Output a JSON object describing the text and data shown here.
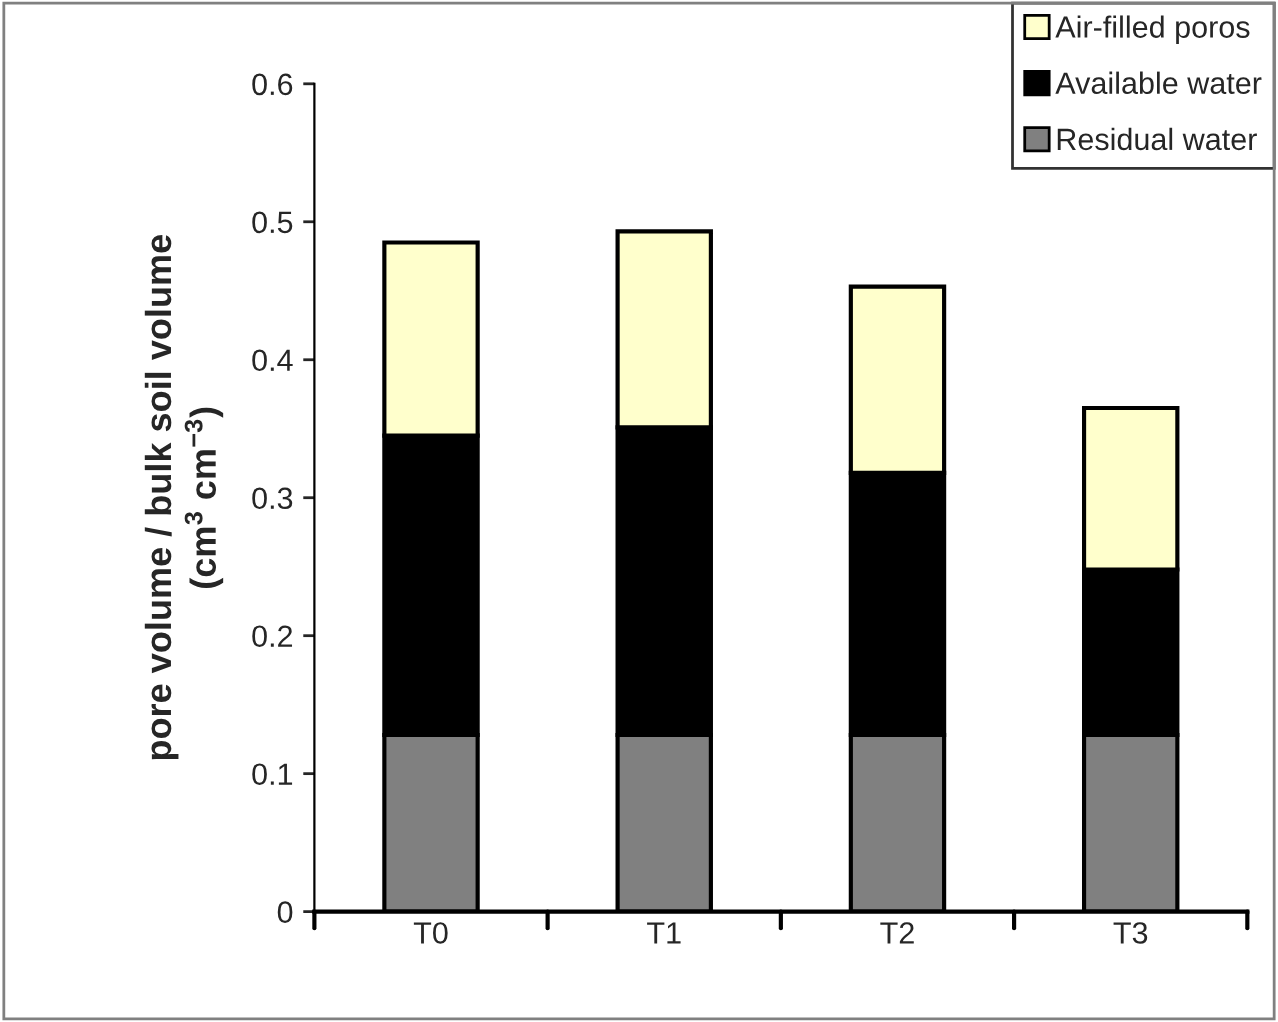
{
  "chart_data": {
    "type": "bar",
    "stacked": true,
    "ylabel": "pore volume / bulk soil volume\n(cm$^{3}$ cm$^{−3}$)",
    "categories": [
      "T0",
      "T1",
      "T2",
      "T3"
    ],
    "series": [
      {
        "name": "Residual water",
        "color": "#808080",
        "values": [
          0.128,
          0.128,
          0.128,
          0.128
        ]
      },
      {
        "name": "Available water",
        "color": "#000000",
        "values": [
          0.217,
          0.223,
          0.19,
          0.12
        ]
      },
      {
        "name": "Air-filled poros",
        "color": "#ffffcc",
        "values": [
          0.14,
          0.142,
          0.135,
          0.117
        ]
      }
    ],
    "ylim": [
      0,
      0.6
    ],
    "yticks": [
      0,
      0.1,
      0.2,
      0.3,
      0.4,
      0.5,
      0.6
    ],
    "grid": false,
    "legend": "top right"
  }
}
